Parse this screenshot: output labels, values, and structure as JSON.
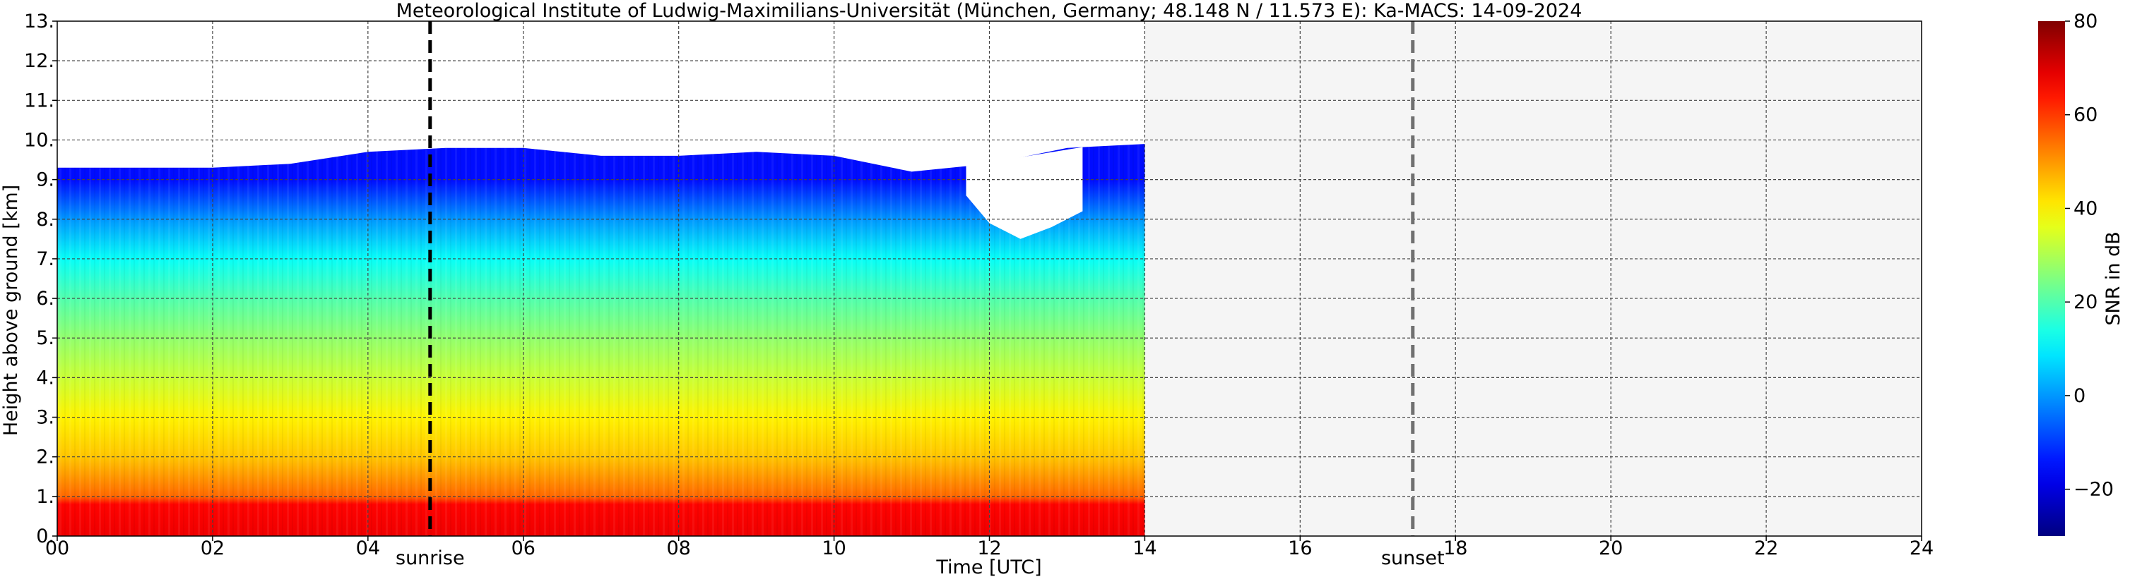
{
  "chart_data": {
    "type": "heatmap",
    "title": "Meteorological Institute of Ludwig-Maximilians-Universität (München, Germany; 48.148 N / 11.573 E):    Ka-MACS: 14-09-2024",
    "xlabel": "Time [UTC]",
    "ylabel": "Height above ground [km]",
    "x_unit": "hour UTC",
    "xlim": [
      0,
      24
    ],
    "ylim": [
      0,
      13
    ],
    "x_ticks": [
      "00",
      "02",
      "04",
      "06",
      "08",
      "10",
      "12",
      "14",
      "16",
      "18",
      "20",
      "22",
      "24"
    ],
    "y_ticks": [
      "0.",
      "1.",
      "2.",
      "3.",
      "4.",
      "5.",
      "6.",
      "7.",
      "8.",
      "9.",
      "10.",
      "11.",
      "12.",
      "13."
    ],
    "grid": true,
    "colorbar": {
      "label": "SNR in dB",
      "range": [
        -30,
        80
      ],
      "ticks": [
        "−20",
        "0",
        "20",
        "40",
        "60",
        "80"
      ],
      "colormap": "jet"
    },
    "data_extent_hours": [
      0,
      14
    ],
    "no_data_region_hours": [
      14,
      24
    ],
    "no_data_color": "#f5f5f5",
    "snr_profile": [
      {
        "height_km": 0.0,
        "snr_db": 68
      },
      {
        "height_km": 0.8,
        "snr_db": 66
      },
      {
        "height_km": 1.0,
        "snr_db": 55
      },
      {
        "height_km": 2.0,
        "snr_db": 45
      },
      {
        "height_km": 3.0,
        "snr_db": 40
      },
      {
        "height_km": 4.0,
        "snr_db": 33
      },
      {
        "height_km": 5.0,
        "snr_db": 27
      },
      {
        "height_km": 6.0,
        "snr_db": 20
      },
      {
        "height_km": 7.0,
        "snr_db": 12
      },
      {
        "height_km": 8.0,
        "snr_db": 0
      },
      {
        "height_km": 9.0,
        "snr_db": -15
      }
    ],
    "cloud_top": [
      {
        "x": 0.0,
        "y": 9.3
      },
      {
        "x": 1.0,
        "y": 9.3
      },
      {
        "x": 2.0,
        "y": 9.3
      },
      {
        "x": 3.0,
        "y": 9.4
      },
      {
        "x": 4.0,
        "y": 9.7
      },
      {
        "x": 5.0,
        "y": 9.8
      },
      {
        "x": 6.0,
        "y": 9.8
      },
      {
        "x": 7.0,
        "y": 9.6
      },
      {
        "x": 8.0,
        "y": 9.6
      },
      {
        "x": 9.0,
        "y": 9.7
      },
      {
        "x": 10.0,
        "y": 9.6
      },
      {
        "x": 11.0,
        "y": 9.2
      },
      {
        "x": 12.0,
        "y": 9.4
      },
      {
        "x": 13.0,
        "y": 9.8
      },
      {
        "x": 14.0,
        "y": 9.9
      }
    ],
    "clear_gap": [
      {
        "x": 11.7,
        "y": 8.6
      },
      {
        "x": 12.0,
        "y": 7.9
      },
      {
        "x": 12.4,
        "y": 7.5
      },
      {
        "x": 12.8,
        "y": 7.8
      },
      {
        "x": 13.2,
        "y": 8.2
      }
    ],
    "markers": [
      {
        "label": "sunrise",
        "hour": 4.8,
        "color": "#000000"
      },
      {
        "label": "sunset",
        "hour": 17.45,
        "color": "#707070"
      }
    ]
  }
}
